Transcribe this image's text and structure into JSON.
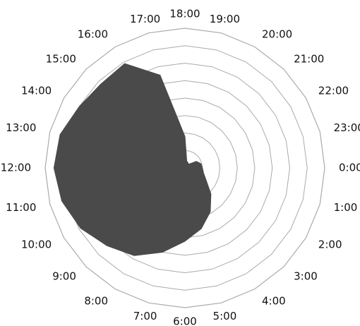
{
  "chart_data": {
    "type": "radar",
    "title": "",
    "categories": [
      "0:00",
      "1:00",
      "2:00",
      "3:00",
      "4:00",
      "5:00",
      "6:00",
      "7:00",
      "8:00",
      "9:00",
      "10:00",
      "11:00",
      "12:00",
      "13:00",
      "14:00",
      "15:00",
      "16:00",
      "17:00",
      "18:00",
      "19:00",
      "20:00",
      "21:00",
      "22:00",
      "23:00"
    ],
    "series": [
      {
        "values": [
          1.0,
          1.1,
          1.4,
          2.1,
          2.9,
          3.6,
          4.2,
          5.0,
          5.8,
          6.3,
          6.9,
          7.3,
          7.5,
          7.4,
          7.0,
          6.8,
          6.9,
          5.5,
          1.8,
          0.4,
          0.35,
          0.3,
          0.75,
          0.95
        ]
      }
    ],
    "rlim": [
      0,
      8
    ],
    "rings": 8,
    "grid": true,
    "colors": {
      "fill": "#4a4a4a",
      "grid": "#aaaaaa"
    }
  }
}
